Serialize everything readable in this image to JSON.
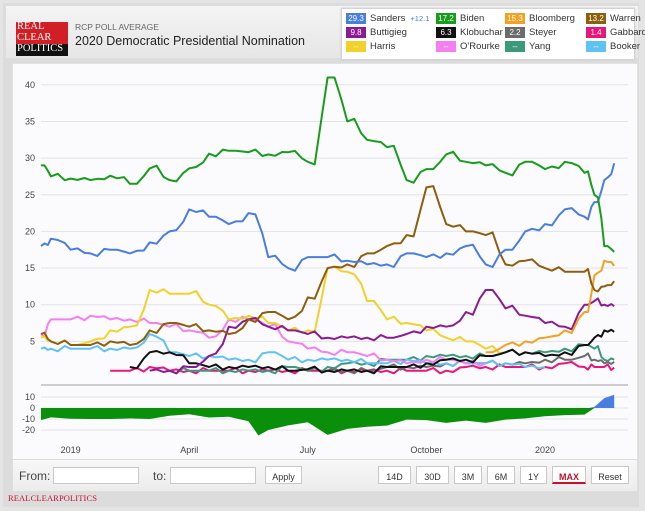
{
  "header": {
    "logo": [
      "REAL",
      "CLEAR",
      "POLITICS"
    ],
    "subtitle": "RCP POLL AVERAGE",
    "title": "2020 Democratic Presidential Nomination"
  },
  "legend": [
    {
      "name": "Sanders",
      "value": "29.3",
      "delta": "+12.1",
      "color": "#4a7de0"
    },
    {
      "name": "Biden",
      "value": "17.2",
      "color": "#179c1c"
    },
    {
      "name": "Bloomberg",
      "value": "15.3",
      "color": "#f5a020"
    },
    {
      "name": "Warren",
      "value": "13.2",
      "color": "#8d5e0c"
    },
    {
      "name": "Buttigieg",
      "value": "9.8",
      "color": "#8b1a93"
    },
    {
      "name": "Klobuchar",
      "value": "6.3",
      "color": "#111111"
    },
    {
      "name": "Steyer",
      "value": "2.2",
      "color": "#6b6b6b"
    },
    {
      "name": "Gabbard",
      "value": "1.4",
      "color": "#e8157a"
    },
    {
      "name": "Harris",
      "value": "--",
      "color": "#f1d12a"
    },
    {
      "name": "O'Rourke",
      "value": "--",
      "color": "#f47ff0"
    },
    {
      "name": "Yang",
      "value": "--",
      "color": "#3a9a7a"
    },
    {
      "name": "Booker",
      "value": "--",
      "color": "#5ec3f3"
    }
  ],
  "toolbar": {
    "from_label": "From:",
    "to_label": "to:",
    "from_value": "",
    "to_value": "",
    "apply_label": "Apply",
    "range_buttons": [
      "14D",
      "30D",
      "3M",
      "6M",
      "1Y",
      "MAX",
      "Reset"
    ],
    "active_range": "MAX"
  },
  "footer": "REALCLEARPOLITICS",
  "chart_data": {
    "type": "line",
    "title": "2020 Democratic Presidential Nomination",
    "xlabel": "",
    "ylabel": "",
    "x_unit": "months since Jan 2019",
    "xlim": [
      -0.75,
      14.1
    ],
    "ylim": [
      0,
      42
    ],
    "yticks": [
      5,
      10,
      15,
      20,
      25,
      30,
      35,
      40
    ],
    "xticks": [
      {
        "x": 0,
        "label": "2019"
      },
      {
        "x": 3,
        "label": "April"
      },
      {
        "x": 6,
        "label": "July"
      },
      {
        "x": 9,
        "label": "October"
      },
      {
        "x": 12,
        "label": "2020"
      }
    ],
    "grid": true,
    "legend_position": "top-right",
    "x": [
      -0.75,
      -0.5,
      0,
      0.5,
      1,
      1.5,
      2,
      2.5,
      3,
      3.5,
      4,
      4.5,
      5,
      5.5,
      6,
      6.5,
      7,
      7.5,
      8,
      8.5,
      9,
      9.5,
      10,
      10.5,
      11,
      11.5,
      12,
      12.5,
      13,
      13.25,
      13.5,
      13.75
    ],
    "series": [
      {
        "name": "Biden",
        "color": "#179c1c",
        "values": [
          29,
          27.5,
          27.2,
          27,
          27.6,
          26.5,
          28.6,
          27,
          28.6,
          30.6,
          31,
          30.8,
          30.5,
          30.8,
          29.5,
          41,
          35,
          32.5,
          31.5,
          27,
          28.5,
          30.5,
          29.5,
          29,
          28,
          29.5,
          28.5,
          29.5,
          28,
          25,
          18,
          17.2
        ]
      },
      {
        "name": "Sanders",
        "color": "#4a7de0",
        "values": [
          18,
          19,
          17.5,
          17,
          17.5,
          17,
          18.5,
          20,
          23,
          22,
          21,
          22.5,
          16.5,
          15,
          16.5,
          16.5,
          16,
          15.5,
          15.5,
          17,
          16.5,
          17,
          18,
          15.5,
          17.5,
          20,
          21,
          23,
          22,
          24,
          27,
          29.3
        ]
      },
      {
        "name": "Warren",
        "color": "#8d5e0c",
        "values": [
          6,
          5,
          4.5,
          4.5,
          5,
          4.5,
          6.5,
          7.5,
          7,
          6.5,
          6,
          8,
          9,
          8,
          11,
          15,
          15.5,
          17,
          18,
          19.5,
          26,
          21,
          20,
          19.5,
          15.5,
          16,
          15,
          14.5,
          14.5,
          12,
          12.5,
          13.2
        ]
      },
      {
        "name": "Bloomberg",
        "color": "#f5a020",
        "values": [
          null,
          null,
          null,
          null,
          null,
          null,
          null,
          null,
          null,
          null,
          null,
          null,
          null,
          null,
          null,
          null,
          null,
          null,
          null,
          null,
          null,
          null,
          null,
          3.5,
          4.5,
          5,
          5.5,
          6.5,
          9,
          14,
          16,
          15.3
        ]
      },
      {
        "name": "Buttigieg",
        "color": "#8b1a93",
        "values": [
          null,
          null,
          null,
          null,
          null,
          null,
          1,
          1,
          1.5,
          3,
          7,
          8,
          7,
          6.5,
          6,
          5.5,
          5.5,
          5.5,
          5.5,
          6,
          7,
          7,
          9,
          12,
          9.5,
          8.5,
          7.5,
          7,
          10,
          10.5,
          10,
          9.8
        ]
      },
      {
        "name": "Klobuchar",
        "color": "#111111",
        "values": [
          null,
          null,
          null,
          null,
          null,
          1.5,
          3.5,
          3.5,
          2,
          1.5,
          1.5,
          1.5,
          1.5,
          1,
          1.2,
          1,
          1,
          1,
          1.5,
          1.5,
          2,
          2.5,
          2.5,
          3,
          3.5,
          3.5,
          3,
          3.5,
          4.5,
          5.5,
          6.5,
          6.3
        ]
      },
      {
        "name": "Harris",
        "color": "#f1d12a",
        "values": [
          5.5,
          5,
          4.5,
          5,
          6.5,
          7,
          12,
          11.5,
          11.5,
          10,
          8,
          8.5,
          7.5,
          6.5,
          6.5,
          15,
          14.5,
          10.5,
          8,
          7.5,
          6.5,
          5.5,
          5,
          4,
          3.5,
          null,
          null,
          null,
          null,
          null,
          null,
          null
        ]
      },
      {
        "name": "O'Rourke",
        "color": "#f47ff0",
        "values": [
          6,
          8,
          8,
          8.5,
          8,
          8,
          7.5,
          7,
          6.5,
          5.5,
          8,
          8,
          7,
          5,
          4,
          3.5,
          3.5,
          3,
          2.5,
          2,
          2.5,
          2.5,
          2,
          2,
          null,
          null,
          null,
          null,
          null,
          null,
          null,
          null
        ]
      },
      {
        "name": "Booker",
        "color": "#5ec3f3",
        "values": [
          4,
          4,
          4,
          4,
          4,
          4,
          6,
          3.5,
          3,
          3,
          2.5,
          2.5,
          3.5,
          2.5,
          2.5,
          2.5,
          2.5,
          2,
          2,
          2.5,
          2,
          2,
          2,
          2,
          2,
          1.5,
          1.5,
          null,
          null,
          null,
          null,
          null
        ]
      },
      {
        "name": "Yang",
        "color": "#3a9a7a",
        "values": [
          null,
          null,
          null,
          null,
          null,
          null,
          null,
          1,
          1,
          1,
          1,
          1,
          1,
          1.5,
          1,
          1.5,
          2,
          2,
          2.5,
          2.5,
          3,
          3,
          3,
          3,
          3.5,
          3.5,
          3.5,
          4,
          4.5,
          4,
          2.5,
          2.5
        ]
      },
      {
        "name": "Steyer",
        "color": "#6b6b6b",
        "values": [
          null,
          null,
          null,
          null,
          null,
          null,
          null,
          null,
          null,
          null,
          null,
          null,
          null,
          null,
          null,
          1,
          1,
          1,
          1.5,
          1.5,
          1.5,
          2,
          2,
          2,
          2,
          2,
          2.5,
          2.5,
          3,
          2.5,
          2,
          2.2
        ]
      },
      {
        "name": "Gabbard",
        "color": "#e8157a",
        "values": [
          null,
          null,
          null,
          null,
          1,
          1,
          1.5,
          1,
          1,
          1,
          1,
          1,
          1,
          1,
          1,
          1,
          1,
          1,
          1,
          1,
          1,
          1,
          1.5,
          1.5,
          1.5,
          1.5,
          1.5,
          2,
          1.5,
          1.5,
          1.5,
          1.4
        ]
      }
    ],
    "spread_chart": {
      "type": "area",
      "name": "Sanders minus Biden spread",
      "yticks": [
        10,
        0,
        -10,
        -20
      ],
      "ylim": [
        -25,
        14
      ],
      "x": [
        -0.75,
        -0.5,
        0,
        0.5,
        1,
        1.5,
        2,
        2.5,
        3,
        3.5,
        4,
        4.5,
        4.75,
        5,
        5.5,
        6,
        6.5,
        7,
        7.5,
        8,
        8.5,
        9,
        9.5,
        10,
        10.5,
        11,
        11.5,
        12,
        12.5,
        13,
        13.25,
        13.5,
        13.75
      ],
      "values": [
        -11,
        -8.5,
        -9.7,
        -10,
        -10,
        -9.5,
        -10,
        -7,
        -5.6,
        -8.6,
        -8,
        -12,
        -25,
        -20,
        -15.8,
        -13,
        -24.5,
        -19,
        -17,
        -16,
        -10.5,
        -11,
        -13.5,
        -11.5,
        -13.5,
        -10.5,
        -9.5,
        -7.5,
        -6.5,
        -6,
        1,
        9,
        12.1
      ],
      "positive_color": "#4a7de0",
      "negative_color": "#0a8f0a"
    }
  }
}
